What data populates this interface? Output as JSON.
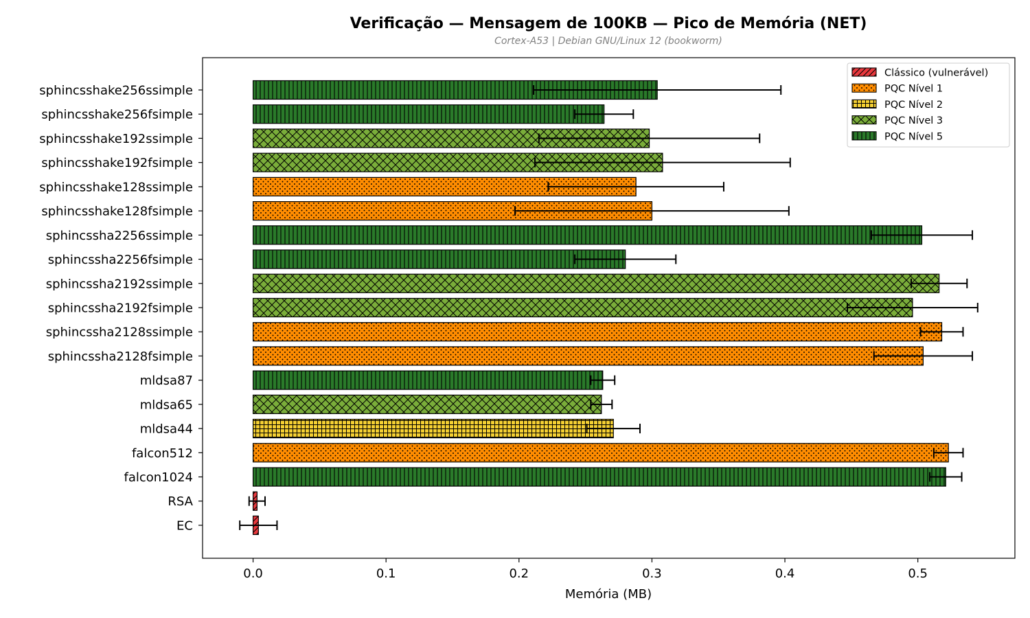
{
  "chart_data": {
    "type": "bar",
    "orientation": "horizontal",
    "title": "Verificação — Mensagem de 100KB — Pico de Memória (NET)",
    "subtitle": "Cortex-A53 | Debian GNU/Linux 12 (bookworm)",
    "xlabel": "Memória (MB)",
    "ylabel": "",
    "xlim": [
      -0.038,
      0.573
    ],
    "xticks": [
      0.0,
      0.1,
      0.2,
      0.3,
      0.4,
      0.5
    ],
    "xtick_labels": [
      "0.0",
      "0.1",
      "0.2",
      "0.3",
      "0.4",
      "0.5"
    ],
    "grid": false,
    "legend_position": "top-right",
    "legend": [
      {
        "key": "classic",
        "label": "Clássico (vulnerável)",
        "color": "#e8383d",
        "pattern": "diagonal"
      },
      {
        "key": "l1",
        "label": "PQC Nível 1",
        "color": "#ff8c00",
        "pattern": "dots"
      },
      {
        "key": "l2",
        "label": "PQC Nível 2",
        "color": "#f5d033",
        "pattern": "grid"
      },
      {
        "key": "l3",
        "label": "PQC Nível 3",
        "color": "#7aad3a",
        "pattern": "crosshatch"
      },
      {
        "key": "l5",
        "label": "PQC Nível 5",
        "color": "#2a7a2a",
        "pattern": "vertical"
      }
    ],
    "categories": [
      "sphincsshake256ssimple",
      "sphincsshake256fsimple",
      "sphincsshake192ssimple",
      "sphincsshake192fsimple",
      "sphincsshake128ssimple",
      "sphincsshake128fsimple",
      "sphincssha2256ssimple",
      "sphincssha2256fsimple",
      "sphincssha2192ssimple",
      "sphincssha2192fsimple",
      "sphincssha2128ssimple",
      "sphincssha2128fsimple",
      "mldsa87",
      "mldsa65",
      "mldsa44",
      "falcon512",
      "falcon1024",
      "RSA",
      "EC"
    ],
    "levels": [
      "l5",
      "l5",
      "l3",
      "l3",
      "l1",
      "l1",
      "l5",
      "l5",
      "l3",
      "l3",
      "l1",
      "l1",
      "l5",
      "l3",
      "l2",
      "l1",
      "l5",
      "classic",
      "classic"
    ],
    "values": [
      0.304,
      0.264,
      0.298,
      0.308,
      0.288,
      0.3,
      0.503,
      0.28,
      0.516,
      0.496,
      0.518,
      0.504,
      0.263,
      0.262,
      0.271,
      0.523,
      0.521,
      0.003,
      0.004
    ],
    "errors": [
      0.093,
      0.022,
      0.083,
      0.096,
      0.066,
      0.103,
      0.038,
      0.038,
      0.021,
      0.049,
      0.016,
      0.037,
      0.009,
      0.008,
      0.02,
      0.011,
      0.012,
      0.006,
      0.014
    ]
  }
}
